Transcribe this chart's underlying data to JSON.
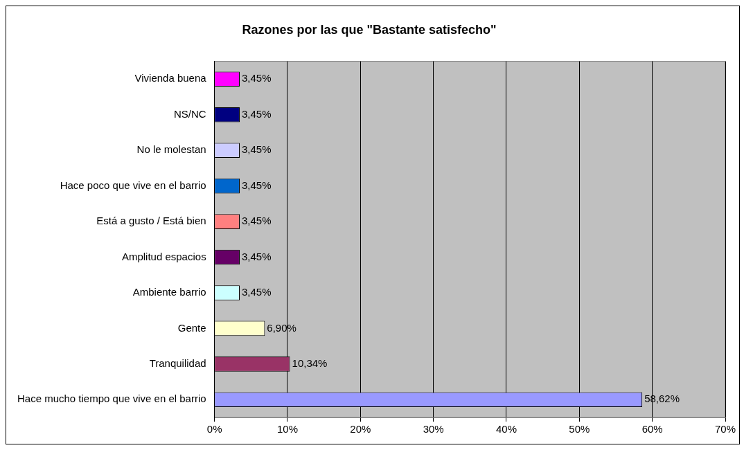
{
  "chart_data": {
    "type": "bar",
    "orientation": "horizontal",
    "title": "Razones por las que \"Bastante satisfecho\"",
    "categories": [
      "Vivienda buena",
      "NS/NC",
      "No le molestan",
      "Hace poco que vive en el barrio",
      "Está a gusto / Está bien",
      "Amplitud espacios",
      "Ambiente barrio",
      "Gente",
      "Tranquilidad",
      "Hace mucho tiempo que vive en el barrio"
    ],
    "values": [
      3.45,
      3.45,
      3.45,
      3.45,
      3.45,
      3.45,
      3.45,
      6.9,
      10.34,
      58.62
    ],
    "value_labels": [
      "3,45%",
      "3,45%",
      "3,45%",
      "3,45%",
      "3,45%",
      "3,45%",
      "3,45%",
      "6,90%",
      "10,34%",
      "58,62%"
    ],
    "colors": [
      "#ff00ff",
      "#000080",
      "#ccccff",
      "#0066cc",
      "#ff8080",
      "#660066",
      "#ccffff",
      "#ffffcc",
      "#993366",
      "#9999ff"
    ],
    "xlim": [
      0,
      70
    ],
    "xticks": [
      {
        "value": 0,
        "label": "0%"
      },
      {
        "value": 10,
        "label": "10%"
      },
      {
        "value": 20,
        "label": "20%"
      },
      {
        "value": 30,
        "label": "30%"
      },
      {
        "value": 40,
        "label": "40%"
      },
      {
        "value": 50,
        "label": "50%"
      },
      {
        "value": 60,
        "label": "60%"
      },
      {
        "value": 70,
        "label": "70%"
      }
    ],
    "grid": "x",
    "legend": false
  }
}
